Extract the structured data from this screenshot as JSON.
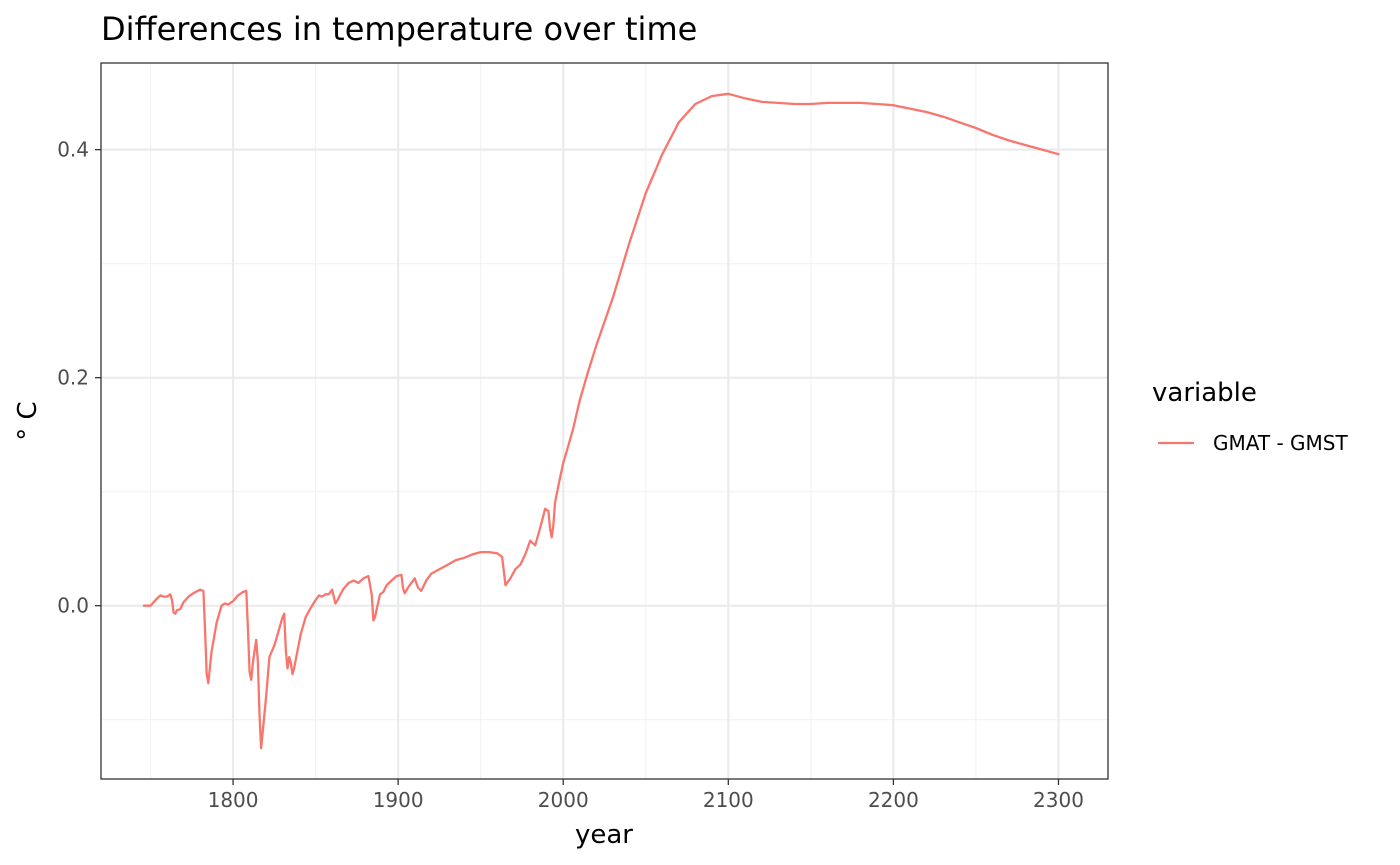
{
  "chart_data": {
    "type": "line",
    "title": "Differences in temperature over time",
    "xlabel": "year",
    "ylabel": "° C",
    "xlim": [
      1720,
      2330
    ],
    "ylim": [
      -0.152,
      0.476
    ],
    "x_ticks": [
      1800,
      1900,
      2000,
      2100,
      2200,
      2300
    ],
    "x_tick_labels": [
      "1800",
      "1900",
      "2000",
      "2100",
      "2200",
      "2300"
    ],
    "x_minor_ticks": [
      1750,
      1850,
      1950,
      2050,
      2150,
      2250
    ],
    "y_ticks": [
      0.0,
      0.2,
      0.4
    ],
    "y_tick_labels": [
      "0.0",
      "0.2",
      "0.4"
    ],
    "y_minor_ticks": [
      -0.1,
      0.1,
      0.3
    ],
    "grid": true,
    "legend": {
      "title": "variable",
      "position": "right"
    },
    "series": [
      {
        "name": "GMAT - GMST",
        "color": "#F8766D",
        "x": [
          1746,
          1750,
          1753,
          1756,
          1758,
          1760,
          1762,
          1763,
          1764,
          1765,
          1766,
          1768,
          1770,
          1773,
          1776,
          1780,
          1782,
          1783,
          1784,
          1785,
          1787,
          1790,
          1793,
          1795,
          1797,
          1800,
          1803,
          1806,
          1808,
          1809,
          1810,
          1811,
          1812,
          1813,
          1814,
          1815,
          1816,
          1817,
          1818,
          1820,
          1822,
          1825,
          1828,
          1830,
          1831,
          1832,
          1833,
          1834,
          1835,
          1836,
          1837,
          1839,
          1841,
          1844,
          1847,
          1850,
          1852,
          1854,
          1856,
          1858,
          1860,
          1861,
          1862,
          1863,
          1865,
          1867,
          1870,
          1873,
          1876,
          1879,
          1882,
          1884,
          1885,
          1886,
          1887,
          1889,
          1891,
          1893,
          1896,
          1899,
          1902,
          1903,
          1904,
          1906,
          1908,
          1910,
          1911,
          1912,
          1914,
          1917,
          1920,
          1925,
          1930,
          1935,
          1940,
          1945,
          1950,
          1955,
          1960,
          1963,
          1965,
          1968,
          1971,
          1974,
          1977,
          1980,
          1983,
          1986,
          1989,
          1991,
          1992,
          1993,
          1994,
          1995,
          1997,
          2000,
          2003,
          2006,
          2010,
          2015,
          2020,
          2030,
          2040,
          2050,
          2060,
          2070,
          2080,
          2090,
          2100,
          2110,
          2120,
          2130,
          2140,
          2150,
          2160,
          2170,
          2180,
          2190,
          2200,
          2210,
          2220,
          2230,
          2240,
          2250,
          2260,
          2270,
          2280,
          2290,
          2300
        ],
        "values": [
          0.0,
          0.0,
          0.005,
          0.009,
          0.008,
          0.008,
          0.01,
          0.005,
          -0.006,
          -0.007,
          -0.004,
          -0.003,
          0.003,
          0.008,
          0.011,
          0.014,
          0.013,
          -0.02,
          -0.06,
          -0.068,
          -0.04,
          -0.015,
          0.0,
          0.002,
          0.001,
          0.004,
          0.009,
          0.012,
          0.013,
          -0.02,
          -0.058,
          -0.065,
          -0.05,
          -0.04,
          -0.03,
          -0.048,
          -0.095,
          -0.125,
          -0.11,
          -0.08,
          -0.045,
          -0.035,
          -0.02,
          -0.01,
          -0.007,
          -0.04,
          -0.055,
          -0.045,
          -0.05,
          -0.06,
          -0.055,
          -0.04,
          -0.025,
          -0.01,
          -0.002,
          0.005,
          0.009,
          0.008,
          0.01,
          0.01,
          0.014,
          0.008,
          0.002,
          0.004,
          0.01,
          0.015,
          0.02,
          0.022,
          0.02,
          0.024,
          0.026,
          0.01,
          -0.013,
          -0.01,
          -0.003,
          0.01,
          0.012,
          0.018,
          0.022,
          0.026,
          0.027,
          0.015,
          0.011,
          0.016,
          0.02,
          0.024,
          0.02,
          0.016,
          0.013,
          0.022,
          0.028,
          0.032,
          0.036,
          0.04,
          0.042,
          0.045,
          0.047,
          0.047,
          0.046,
          0.043,
          0.018,
          0.024,
          0.032,
          0.036,
          0.045,
          0.057,
          0.053,
          0.068,
          0.085,
          0.083,
          0.068,
          0.06,
          0.07,
          0.09,
          0.105,
          0.125,
          0.14,
          0.155,
          0.18,
          0.205,
          0.228,
          0.27,
          0.318,
          0.362,
          0.396,
          0.424,
          0.44,
          0.447,
          0.449,
          0.445,
          0.442,
          0.441,
          0.44,
          0.44,
          0.441,
          0.441,
          0.441,
          0.44,
          0.439,
          0.436,
          0.433,
          0.429,
          0.424,
          0.419,
          0.413,
          0.408,
          0.404,
          0.4,
          0.396
        ]
      }
    ]
  }
}
